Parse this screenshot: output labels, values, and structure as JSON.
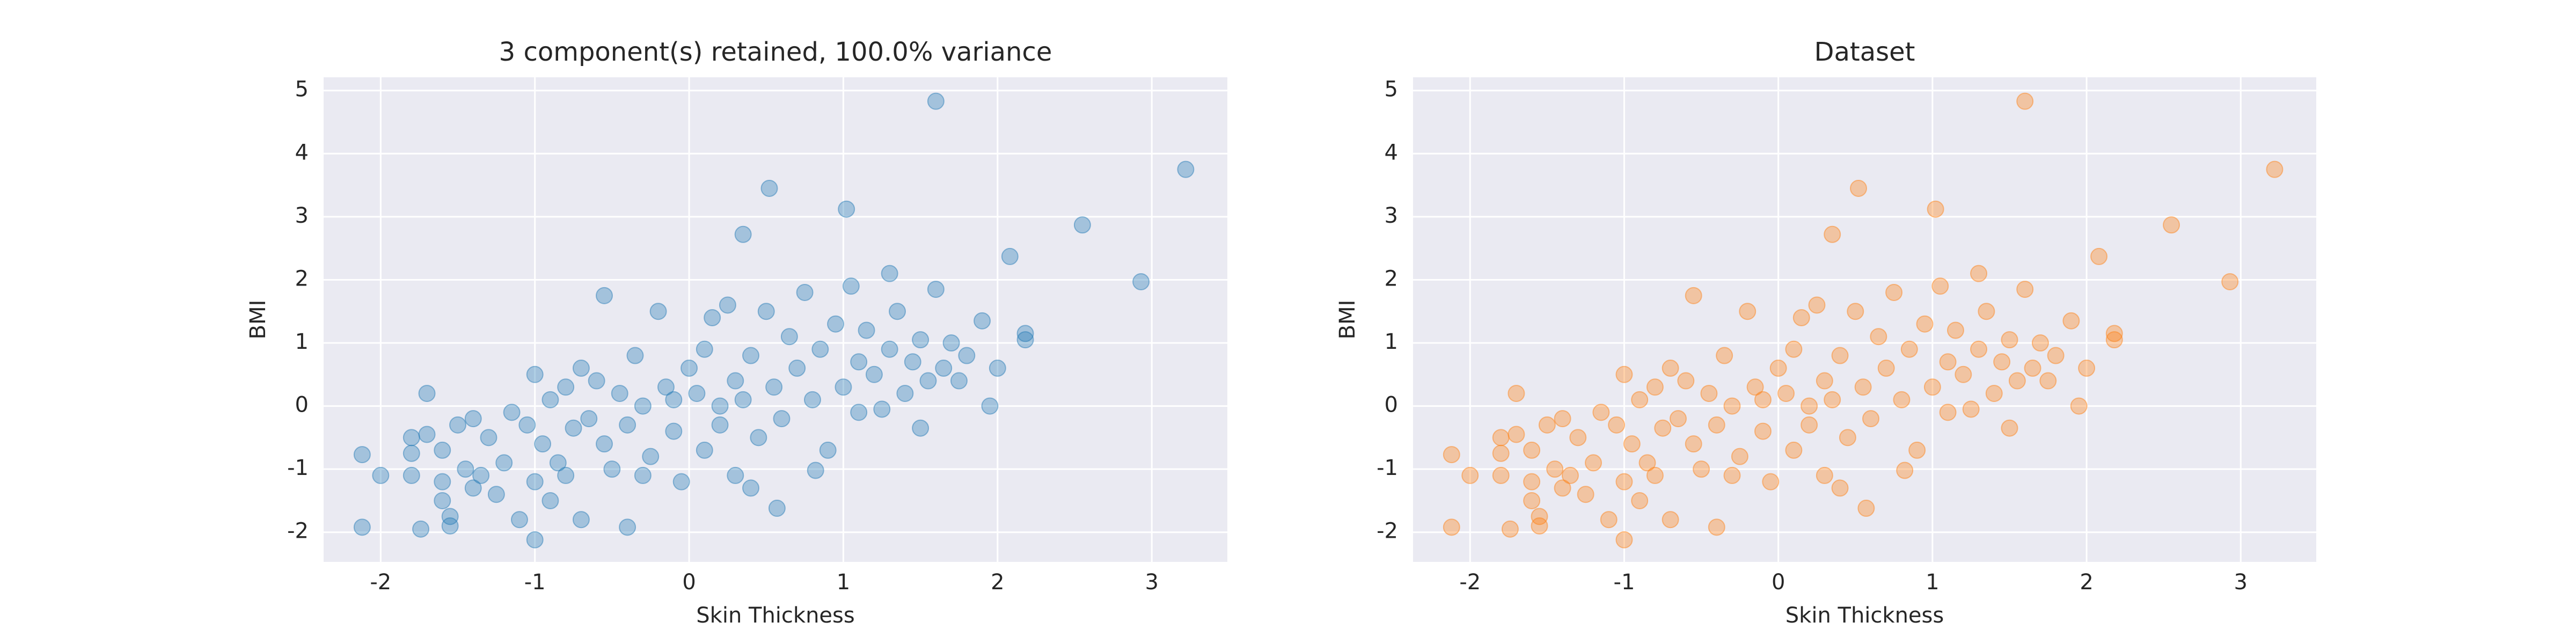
{
  "chart_data": [
    {
      "type": "scatter",
      "title": "3 component(s) retained, 100.0% variance",
      "x_label": "Skin Thickness",
      "y_label": "BMI",
      "color": "#1f77b4",
      "xlim": [
        -2.37,
        3.49
      ],
      "ylim": [
        -2.47,
        5.21
      ],
      "xticks": [
        -2,
        -1,
        0,
        1,
        2,
        3
      ],
      "yticks": [
        -2,
        -1,
        0,
        1,
        2,
        3,
        4,
        5
      ],
      "grid": true,
      "x": [
        -2.12,
        -2.12,
        -2.0,
        -1.8,
        -1.8,
        -1.8,
        -1.74,
        -1.7,
        -1.7,
        -1.6,
        -1.6,
        -1.6,
        -1.55,
        -1.55,
        -1.5,
        -1.45,
        -1.4,
        -1.4,
        -1.35,
        -1.3,
        -1.25,
        -1.2,
        -1.15,
        -1.1,
        -1.05,
        -1.0,
        -1.0,
        -1.0,
        -0.95,
        -0.9,
        -0.9,
        -0.85,
        -0.8,
        -0.8,
        -0.75,
        -0.7,
        -0.7,
        -0.65,
        -0.6,
        -0.55,
        -0.55,
        -0.5,
        -0.45,
        -0.4,
        -0.4,
        -0.35,
        -0.3,
        -0.3,
        -0.25,
        -0.2,
        -0.15,
        -0.1,
        -0.1,
        -0.05,
        0.0,
        0.05,
        0.1,
        0.1,
        0.15,
        0.2,
        0.2,
        0.25,
        0.3,
        0.3,
        0.35,
        0.35,
        0.4,
        0.4,
        0.45,
        0.5,
        0.52,
        0.55,
        0.57,
        0.6,
        0.65,
        0.7,
        0.75,
        0.8,
        0.82,
        0.85,
        0.9,
        0.95,
        1.0,
        1.02,
        1.05,
        1.1,
        1.1,
        1.15,
        1.2,
        1.25,
        1.3,
        1.3,
        1.35,
        1.4,
        1.45,
        1.5,
        1.5,
        1.55,
        1.6,
        1.6,
        1.65,
        1.7,
        1.75,
        1.8,
        1.9,
        1.95,
        2.0,
        2.08,
        2.18,
        2.18,
        2.55,
        2.93,
        3.22
      ],
      "values": [
        -0.77,
        -1.92,
        -1.1,
        -0.5,
        -0.75,
        -1.1,
        -1.95,
        0.2,
        -0.45,
        -0.7,
        -1.2,
        -1.5,
        -1.75,
        -1.9,
        -0.3,
        -1.0,
        -1.3,
        -0.2,
        -1.1,
        -0.5,
        -1.4,
        -0.9,
        -0.1,
        -1.8,
        -0.3,
        0.5,
        -1.2,
        -2.12,
        -0.6,
        0.1,
        -1.5,
        -0.9,
        0.3,
        -1.1,
        -0.35,
        -1.8,
        0.6,
        -0.2,
        0.4,
        -0.6,
        1.75,
        -1.0,
        0.2,
        -1.92,
        -0.3,
        0.8,
        0.0,
        -1.1,
        -0.8,
        1.5,
        0.3,
        -0.4,
        0.1,
        -1.2,
        0.6,
        0.2,
        -0.7,
        0.9,
        1.4,
        0.0,
        -0.3,
        1.6,
        0.4,
        -1.1,
        2.72,
        0.1,
        -1.3,
        0.8,
        -0.5,
        1.5,
        3.45,
        0.3,
        -1.62,
        -0.2,
        1.1,
        0.6,
        1.8,
        0.1,
        -1.02,
        0.9,
        -0.7,
        1.3,
        0.3,
        3.12,
        1.9,
        0.7,
        -0.1,
        1.2,
        0.5,
        -0.05,
        2.1,
        0.9,
        1.5,
        0.2,
        0.7,
        1.05,
        -0.35,
        0.4,
        4.83,
        1.85,
        0.6,
        1.0,
        0.4,
        0.8,
        1.35,
        0.0,
        0.6,
        2.37,
        1.15,
        1.05,
        2.87,
        1.97,
        3.75
      ]
    },
    {
      "type": "scatter",
      "title": "Dataset",
      "x_label": "Skin Thickness",
      "y_label": "BMI",
      "color": "#ff7f0e",
      "xlim": [
        -2.37,
        3.49
      ],
      "ylim": [
        -2.47,
        5.21
      ],
      "xticks": [
        -2,
        -1,
        0,
        1,
        2,
        3
      ],
      "yticks": [
        -2,
        -1,
        0,
        1,
        2,
        3,
        4,
        5
      ],
      "grid": true,
      "x": [
        -2.12,
        -2.12,
        -2.0,
        -1.8,
        -1.8,
        -1.8,
        -1.74,
        -1.7,
        -1.7,
        -1.6,
        -1.6,
        -1.6,
        -1.55,
        -1.55,
        -1.5,
        -1.45,
        -1.4,
        -1.4,
        -1.35,
        -1.3,
        -1.25,
        -1.2,
        -1.15,
        -1.1,
        -1.05,
        -1.0,
        -1.0,
        -1.0,
        -0.95,
        -0.9,
        -0.9,
        -0.85,
        -0.8,
        -0.8,
        -0.75,
        -0.7,
        -0.7,
        -0.65,
        -0.6,
        -0.55,
        -0.55,
        -0.5,
        -0.45,
        -0.4,
        -0.4,
        -0.35,
        -0.3,
        -0.3,
        -0.25,
        -0.2,
        -0.15,
        -0.1,
        -0.1,
        -0.05,
        0.0,
        0.05,
        0.1,
        0.1,
        0.15,
        0.2,
        0.2,
        0.25,
        0.3,
        0.3,
        0.35,
        0.35,
        0.4,
        0.4,
        0.45,
        0.5,
        0.52,
        0.55,
        0.57,
        0.6,
        0.65,
        0.7,
        0.75,
        0.8,
        0.82,
        0.85,
        0.9,
        0.95,
        1.0,
        1.02,
        1.05,
        1.1,
        1.1,
        1.15,
        1.2,
        1.25,
        1.3,
        1.3,
        1.35,
        1.4,
        1.45,
        1.5,
        1.5,
        1.55,
        1.6,
        1.6,
        1.65,
        1.7,
        1.75,
        1.8,
        1.9,
        1.95,
        2.0,
        2.08,
        2.18,
        2.18,
        2.55,
        2.93,
        3.22
      ],
      "values": [
        -0.77,
        -1.92,
        -1.1,
        -0.5,
        -0.75,
        -1.1,
        -1.95,
        0.2,
        -0.45,
        -0.7,
        -1.2,
        -1.5,
        -1.75,
        -1.9,
        -0.3,
        -1.0,
        -1.3,
        -0.2,
        -1.1,
        -0.5,
        -1.4,
        -0.9,
        -0.1,
        -1.8,
        -0.3,
        0.5,
        -1.2,
        -2.12,
        -0.6,
        0.1,
        -1.5,
        -0.9,
        0.3,
        -1.1,
        -0.35,
        -1.8,
        0.6,
        -0.2,
        0.4,
        -0.6,
        1.75,
        -1.0,
        0.2,
        -1.92,
        -0.3,
        0.8,
        0.0,
        -1.1,
        -0.8,
        1.5,
        0.3,
        -0.4,
        0.1,
        -1.2,
        0.6,
        0.2,
        -0.7,
        0.9,
        1.4,
        0.0,
        -0.3,
        1.6,
        0.4,
        -1.1,
        2.72,
        0.1,
        -1.3,
        0.8,
        -0.5,
        1.5,
        3.45,
        0.3,
        -1.62,
        -0.2,
        1.1,
        0.6,
        1.8,
        0.1,
        -1.02,
        0.9,
        -0.7,
        1.3,
        0.3,
        3.12,
        1.9,
        0.7,
        -0.1,
        1.2,
        0.5,
        -0.05,
        2.1,
        0.9,
        1.5,
        0.2,
        0.7,
        1.05,
        -0.35,
        0.4,
        4.83,
        1.85,
        0.6,
        1.0,
        0.4,
        0.8,
        1.35,
        0.0,
        0.6,
        2.37,
        1.15,
        1.05,
        2.87,
        1.97,
        3.75
      ]
    }
  ]
}
